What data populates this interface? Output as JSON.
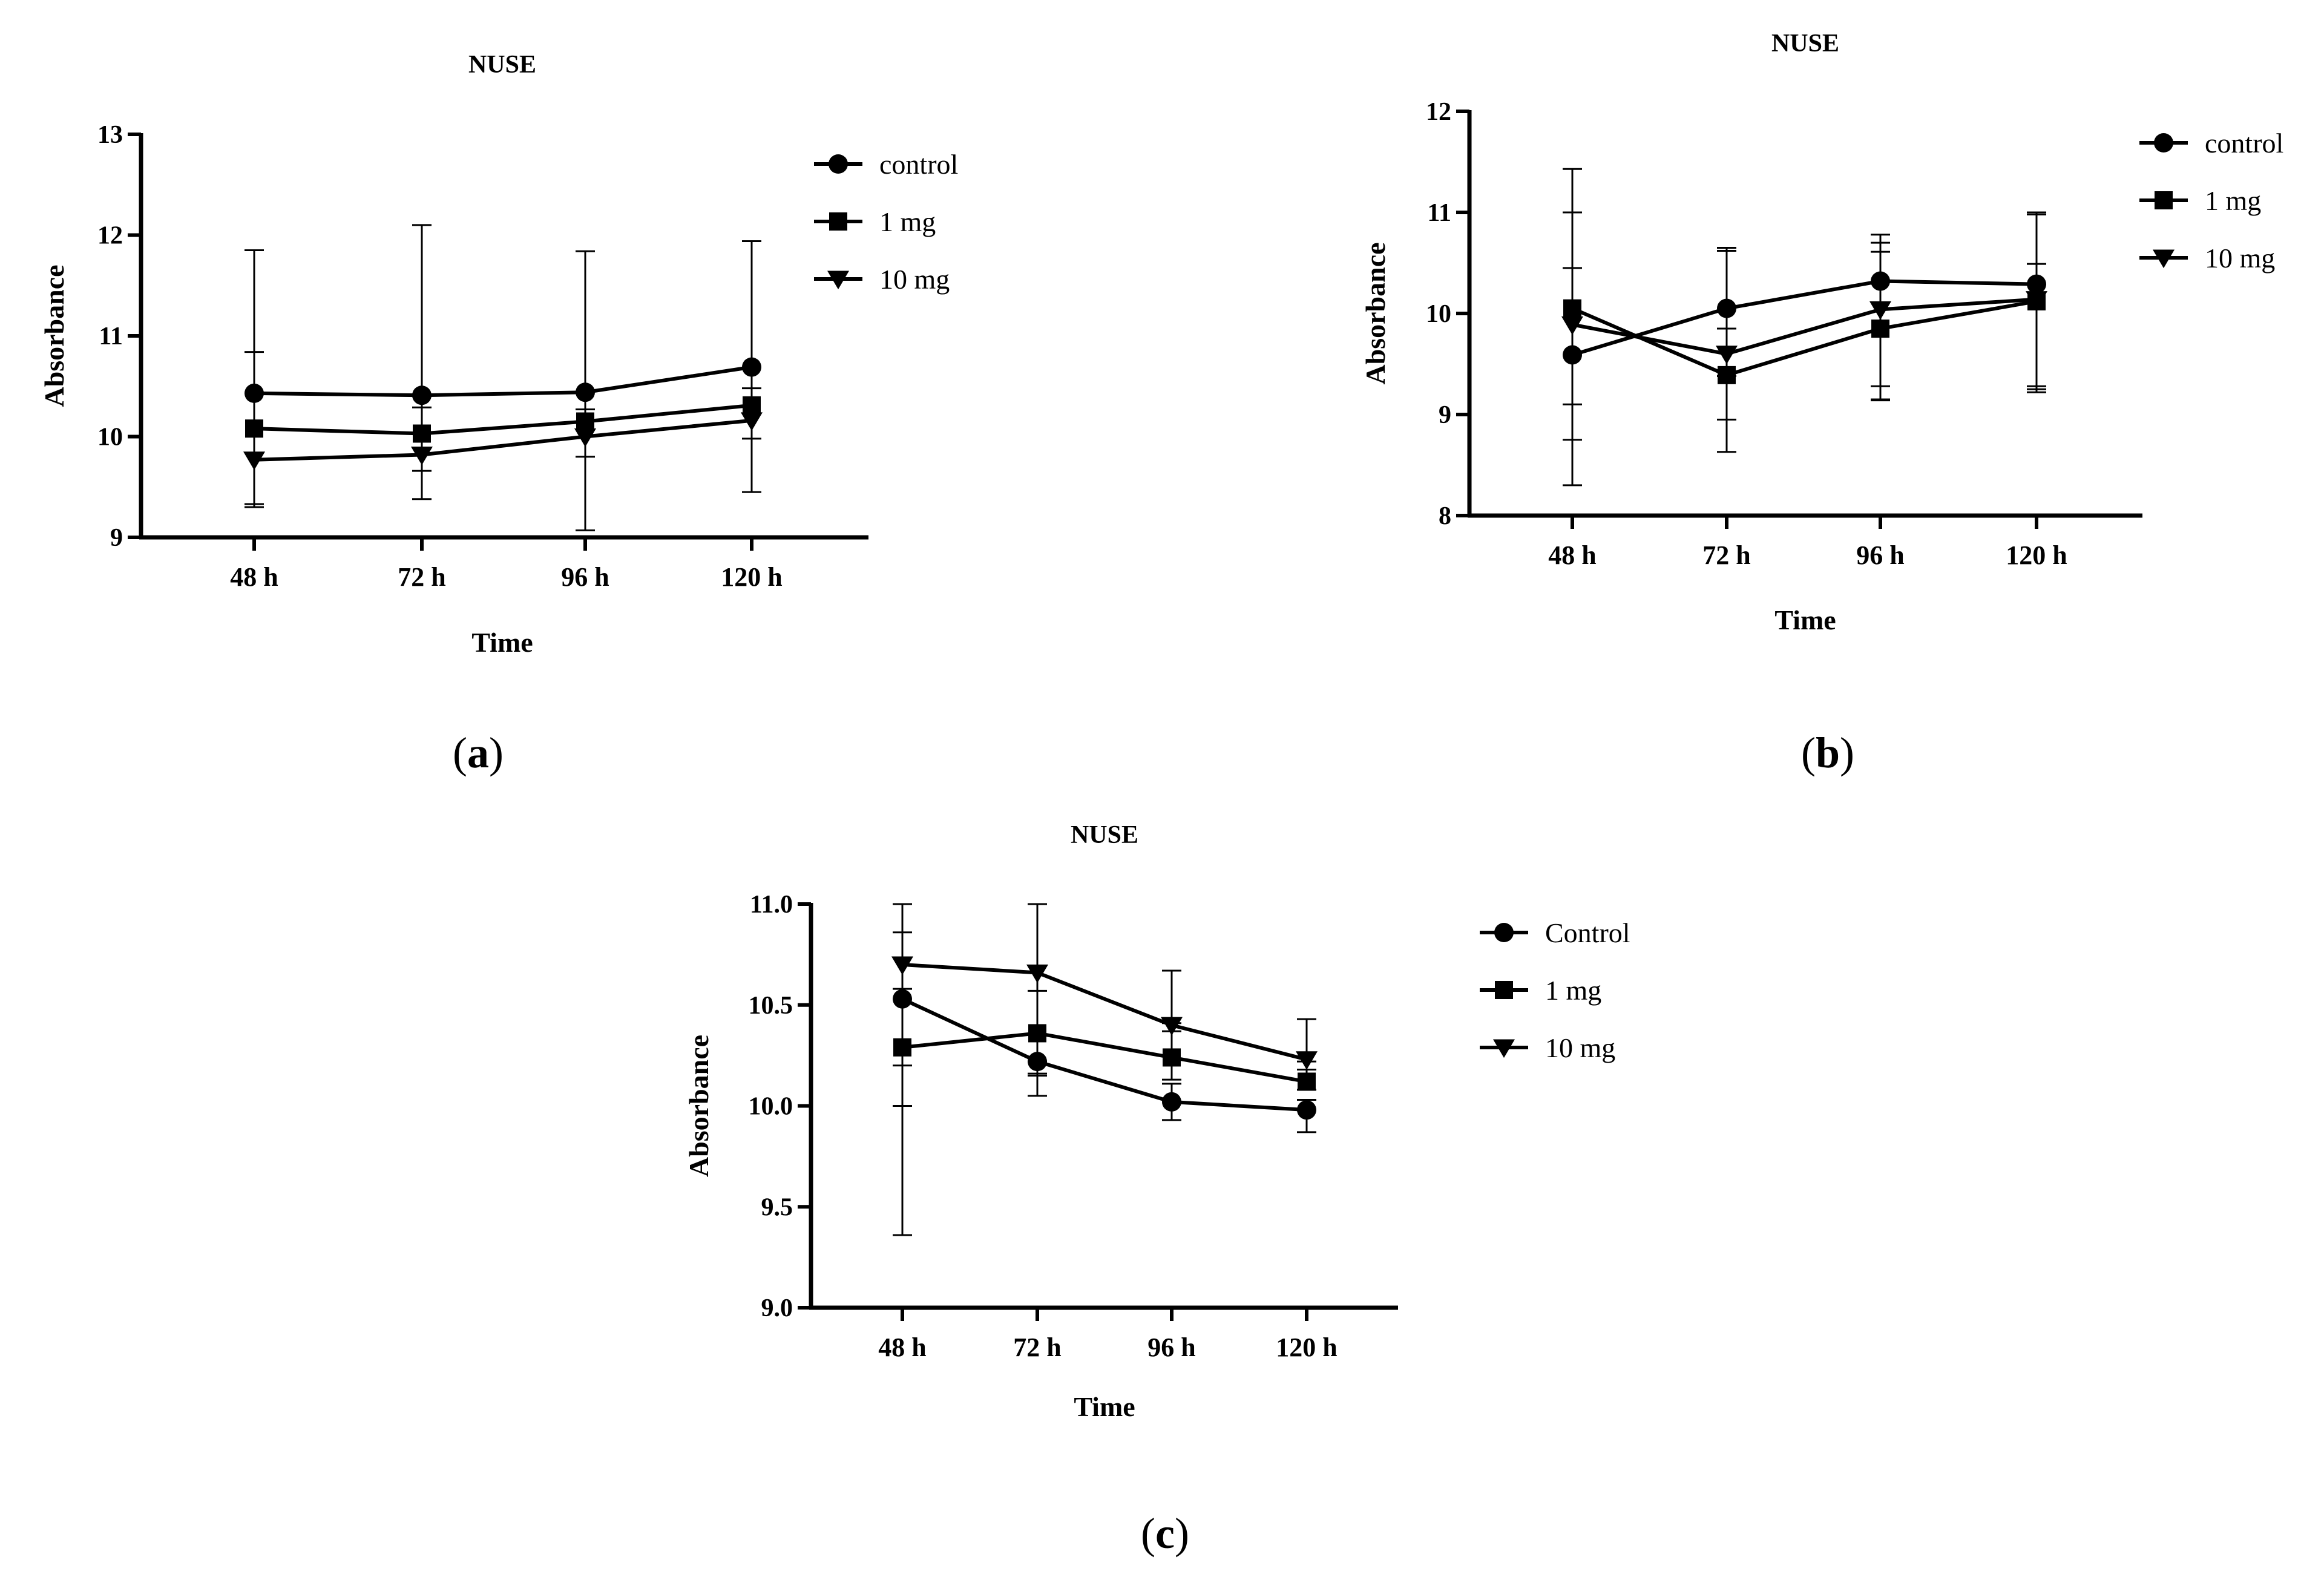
{
  "chart_data": [
    {
      "type": "line",
      "panel": "(a)",
      "panel_bold": "a",
      "title": "NUSE",
      "xlabel": "Time",
      "ylabel": "Absorbance",
      "categories": [
        "48 h",
        "72 h",
        "96 h",
        "120 h"
      ],
      "ylim": [
        9,
        13
      ],
      "yticks": [
        "9",
        "10",
        "11",
        "12",
        "13"
      ],
      "ytick_values": [
        9,
        10,
        11,
        12,
        13
      ],
      "legend_position": "right",
      "series": [
        {
          "name": "control",
          "marker": "circle",
          "values": [
            10.43,
            10.41,
            10.44,
            10.69
          ],
          "err_high": [
            11.85,
            12.1,
            11.84,
            11.94
          ],
          "err_low": [
            9.3,
            9.38,
            9.07,
            9.45
          ]
        },
        {
          "name": "1 mg",
          "marker": "square",
          "values": [
            10.08,
            10.03,
            10.15,
            10.31
          ],
          "err_high": [
            10.84,
            10.29,
            10.27,
            10.48
          ],
          "err_low": [
            9.33,
            9.66,
            9.8,
            9.98
          ]
        },
        {
          "name": "10 mg",
          "marker": "triangle-down",
          "values": [
            9.77,
            9.82,
            10.0,
            10.16
          ],
          "err_high": [
            9.77,
            9.82,
            10.0,
            10.16
          ],
          "err_low": [
            9.77,
            9.82,
            10.0,
            10.16
          ]
        }
      ]
    },
    {
      "type": "line",
      "panel": "(b)",
      "panel_bold": "b",
      "title": "NUSE",
      "xlabel": "Time",
      "ylabel": "Absorbance",
      "categories": [
        "48 h",
        "72 h",
        "96 h",
        "120 h"
      ],
      "ylim": [
        8,
        12
      ],
      "yticks": [
        "8",
        "9",
        "10",
        "11",
        "12"
      ],
      "ytick_values": [
        8,
        9,
        10,
        11,
        12
      ],
      "legend_position": "right",
      "series": [
        {
          "name": "control",
          "marker": "circle",
          "values": [
            9.59,
            10.05,
            10.32,
            10.29
          ],
          "err_high": [
            11.0,
            10.65,
            10.78,
            11.0
          ],
          "err_low": [
            8.3,
            8.95,
            9.14,
            9.25
          ]
        },
        {
          "name": "1 mg",
          "marker": "square",
          "values": [
            10.05,
            9.39,
            9.85,
            10.12
          ],
          "err_high": [
            11.43,
            10.62,
            10.7,
            10.98
          ],
          "err_low": [
            8.75,
            8.63,
            9.28,
            9.22
          ]
        },
        {
          "name": "10 mg",
          "marker": "triangle-down",
          "values": [
            9.89,
            9.6,
            10.04,
            10.14
          ],
          "err_high": [
            10.45,
            9.85,
            10.61,
            10.49
          ],
          "err_low": [
            9.1,
            9.38,
            9.15,
            9.28
          ]
        }
      ]
    },
    {
      "type": "line",
      "panel": "(c)",
      "panel_bold": "c",
      "title": "NUSE",
      "xlabel": "Time",
      "ylabel": "Absorbance",
      "categories": [
        "48 h",
        "72 h",
        "96 h",
        "120 h"
      ],
      "ylim": [
        9.0,
        11.0
      ],
      "yticks": [
        "9.0",
        "9.5",
        "10.0",
        "10.5",
        "11.0"
      ],
      "ytick_values": [
        9.0,
        9.5,
        10.0,
        10.5,
        11.0
      ],
      "legend_position": "right",
      "series": [
        {
          "name": "Control",
          "marker": "circle",
          "values": [
            10.53,
            10.22,
            10.02,
            9.98
          ],
          "err_high": [
            10.58,
            10.22,
            10.11,
            10.03
          ],
          "err_low": [
            10.0,
            10.15,
            9.93,
            9.87
          ]
        },
        {
          "name": "1 mg",
          "marker": "square",
          "values": [
            10.29,
            10.36,
            10.24,
            10.12
          ],
          "err_high": [
            10.86,
            10.57,
            10.41,
            10.18
          ],
          "err_low": [
            9.36,
            10.05,
            10.13,
            10.08
          ]
        },
        {
          "name": "10 mg",
          "marker": "triangle-down",
          "values": [
            10.7,
            10.66,
            10.4,
            10.23
          ],
          "err_high": [
            11.0,
            11.0,
            10.67,
            10.43
          ],
          "err_low": [
            10.2,
            10.16,
            10.37,
            10.22
          ]
        }
      ]
    }
  ]
}
